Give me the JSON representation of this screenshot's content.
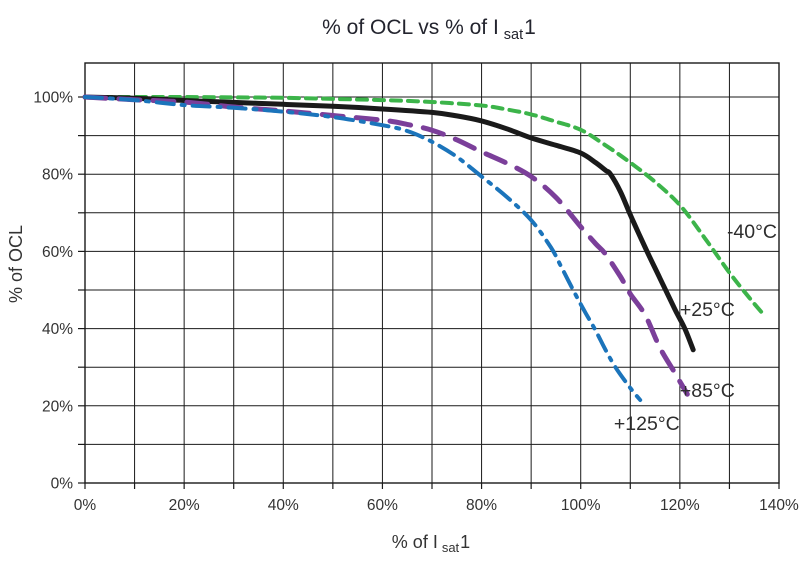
{
  "title": {
    "pre": "% of OCL vs % of I",
    "sub": "sat",
    "post": "1"
  },
  "axes": {
    "x": {
      "label_pre": "% of I",
      "label_sub": "sat",
      "label_post": "1",
      "tick_labels": [
        "0%",
        "20%",
        "40%",
        "60%",
        "80%",
        "100%",
        "120%",
        "140%"
      ],
      "tick_values": [
        0,
        20,
        40,
        60,
        80,
        100,
        120,
        140
      ],
      "minor_step": 10,
      "range": [
        0,
        140
      ]
    },
    "y": {
      "label": "% of OCL",
      "tick_labels": [
        "0%",
        "20%",
        "40%",
        "60%",
        "80%",
        "100%"
      ],
      "tick_values": [
        0,
        20,
        40,
        60,
        80,
        100
      ],
      "minor_step": 10,
      "range": [
        0,
        100
      ]
    }
  },
  "colors": {
    "grid": "#1a1a1a",
    "border": "#1a1a1a",
    "text": "#333333",
    "title_text": "#23242e",
    "background": "#ffffff",
    "series_green": "#3cb44a",
    "series_black": "#1a1a1a",
    "series_purple": "#7b3f9a",
    "series_blue": "#1b74bb"
  },
  "chart_data": {
    "type": "line",
    "title": "% of OCL vs % of Isat1",
    "xlabel": "% of Isat1",
    "ylabel": "% of OCL",
    "xlim": [
      0,
      140
    ],
    "ylim": [
      0,
      109
    ],
    "grid": true,
    "grid_step_percent": 10,
    "legend": "inline-curve-labels",
    "series": [
      {
        "id": "minus-40c",
        "name": "-40°C",
        "color": "#3cb44a",
        "dash": "10 7",
        "width": 4,
        "label": {
          "text": "-40°C",
          "x": 129.5,
          "y": 63.5
        },
        "points": [
          [
            0,
            100
          ],
          [
            10,
            100
          ],
          [
            20,
            100
          ],
          [
            30,
            99.9
          ],
          [
            40,
            99.8
          ],
          [
            50,
            99.5
          ],
          [
            60,
            99.2
          ],
          [
            70,
            98.7
          ],
          [
            80,
            97.8
          ],
          [
            85,
            96.8
          ],
          [
            90,
            95.5
          ],
          [
            95,
            93.6
          ],
          [
            100,
            91.5
          ],
          [
            105,
            87.5
          ],
          [
            110,
            83
          ],
          [
            115,
            78
          ],
          [
            120,
            72
          ],
          [
            125,
            63.5
          ],
          [
            130,
            54.5
          ],
          [
            134,
            48
          ],
          [
            137,
            43.5
          ]
        ]
      },
      {
        "id": "plus-25c",
        "name": "+25°C",
        "color": "#1a1a1a",
        "dash": "",
        "width": 5,
        "label": {
          "text": "+25°C",
          "x": 120.0,
          "y": 43.3
        },
        "points": [
          [
            0,
            100
          ],
          [
            10,
            99.7
          ],
          [
            20,
            99.1
          ],
          [
            30,
            98.6
          ],
          [
            40,
            98.1
          ],
          [
            50,
            97.6
          ],
          [
            60,
            96.9
          ],
          [
            70,
            96
          ],
          [
            75,
            95.1
          ],
          [
            80,
            93.8
          ],
          [
            85,
            91.8
          ],
          [
            90,
            89.4
          ],
          [
            95,
            87.5
          ],
          [
            100,
            85.5
          ],
          [
            103,
            83
          ],
          [
            105,
            81
          ],
          [
            106,
            80
          ],
          [
            108,
            75.5
          ],
          [
            110,
            69.5
          ],
          [
            113,
            61
          ],
          [
            116,
            53
          ],
          [
            119,
            45
          ],
          [
            121,
            40
          ],
          [
            122.7,
            34.5
          ]
        ]
      },
      {
        "id": "plus-85c",
        "name": "+85°C",
        "color": "#7b3f9a",
        "dash": "21 13",
        "width": 5,
        "label": {
          "text": "+85°C",
          "x": 120.0,
          "y": 22.3
        },
        "points": [
          [
            0,
            100
          ],
          [
            10,
            99.3
          ],
          [
            20,
            98.7
          ],
          [
            30,
            97.4
          ],
          [
            40,
            96.4
          ],
          [
            50,
            95.2
          ],
          [
            60,
            94
          ],
          [
            65,
            92.9
          ],
          [
            70,
            91.4
          ],
          [
            75,
            88.9
          ],
          [
            80,
            85.8
          ],
          [
            85,
            82.9
          ],
          [
            90,
            79.4
          ],
          [
            95,
            74
          ],
          [
            100,
            66.4
          ],
          [
            103,
            62
          ],
          [
            105,
            59.3
          ],
          [
            108,
            53.5
          ],
          [
            110,
            49
          ],
          [
            113,
            43.5
          ],
          [
            116,
            35
          ],
          [
            119,
            28.5
          ],
          [
            121.5,
            23
          ]
        ]
      },
      {
        "id": "plus-125c",
        "name": "+125°C",
        "color": "#1b74bb",
        "dash": "17 8 3 8",
        "width": 4,
        "label": {
          "text": "+125°C",
          "x": 106.7,
          "y": 13.7
        },
        "points": [
          [
            0,
            100
          ],
          [
            10,
            99.2
          ],
          [
            20,
            97.9
          ],
          [
            30,
            97.2
          ],
          [
            40,
            96.2
          ],
          [
            50,
            94.8
          ],
          [
            60,
            92.7
          ],
          [
            65,
            91.2
          ],
          [
            70,
            88.4
          ],
          [
            75,
            84.5
          ],
          [
            80,
            79.4
          ],
          [
            85,
            74.2
          ],
          [
            90,
            68.1
          ],
          [
            94,
            61
          ],
          [
            96,
            56.2
          ],
          [
            99,
            48.7
          ],
          [
            101,
            44
          ],
          [
            103,
            39.5
          ],
          [
            105,
            34.5
          ],
          [
            107,
            30
          ],
          [
            110,
            24.6
          ],
          [
            112,
            21.5
          ]
        ]
      }
    ]
  }
}
